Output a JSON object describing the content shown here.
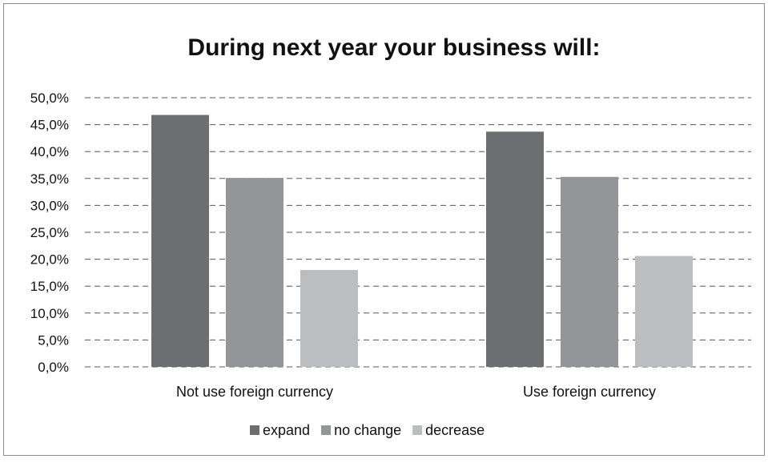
{
  "chart_data": {
    "type": "bar",
    "title": "During next year your business will:",
    "categories": [
      "Not use foreign currency",
      "Use foreign currency"
    ],
    "series": [
      {
        "name": "expand",
        "values": [
          46.8,
          43.7
        ],
        "color": "#6d6e71"
      },
      {
        "name": "no change",
        "values": [
          35.1,
          35.3
        ],
        "color": "#939598"
      },
      {
        "name": "decrease",
        "values": [
          18.0,
          20.6
        ],
        "color": "#bcbdc0"
      }
    ],
    "yticks": [
      "0,0%",
      "5,0%",
      "10,0%",
      "15,0%",
      "20,0%",
      "25,0%",
      "30,0%",
      "35,0%",
      "40,0%",
      "45,0%",
      "50,0%"
    ],
    "ylim": [
      0,
      50
    ],
    "grid": true,
    "legend": "bottom"
  }
}
